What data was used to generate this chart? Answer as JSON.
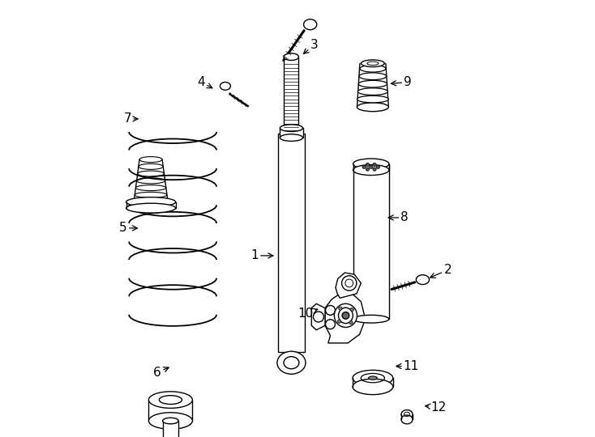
{
  "bg_color": "#ffffff",
  "line_color": "#000000",
  "line_width": 1.0,
  "fig_width": 7.34,
  "fig_height": 5.4,
  "dpi": 100
}
